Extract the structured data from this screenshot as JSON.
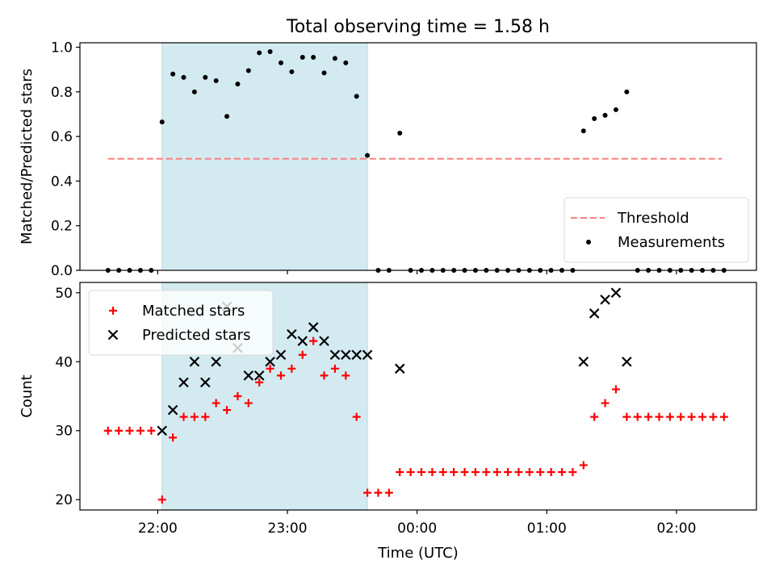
{
  "chart_data": {
    "title": "Total observing time = 1.58 h",
    "x_axis": {
      "label": "Time (UTC)",
      "range": [
        "21:24",
        "02:37"
      ],
      "ticks": [
        "22:00",
        "23:00",
        "00:00",
        "01:00",
        "02:00"
      ]
    },
    "highlight_span": {
      "start": "22:02",
      "end": "23:37",
      "color": "#d3eaf1"
    },
    "panels": [
      {
        "type": "scatter",
        "ylabel": "Matched/Predicted stars",
        "ylim": [
          0,
          1.02
        ],
        "yticks": [
          "0.0",
          "0.2",
          "0.4",
          "0.6",
          "0.8",
          "1.0"
        ],
        "legend_position": "lower-right",
        "threshold": {
          "name": "Threshold",
          "value": 0.5,
          "x_start": "21:37",
          "x_end": "02:21",
          "color": "#ff7f7f",
          "style": "dashed"
        },
        "series": [
          {
            "name": "Measurements",
            "marker": "dot",
            "color": "#000000",
            "points": [
              [
                "21:37",
                0
              ],
              [
                "21:42",
                0
              ],
              [
                "21:47",
                0
              ],
              [
                "21:52",
                0
              ],
              [
                "21:57",
                0
              ],
              [
                "22:02",
                0.665
              ],
              [
                "22:07",
                0.88
              ],
              [
                "22:12",
                0.865
              ],
              [
                "22:17",
                0.8
              ],
              [
                "22:22",
                0.865
              ],
              [
                "22:27",
                0.85
              ],
              [
                "22:32",
                0.69
              ],
              [
                "22:37",
                0.835
              ],
              [
                "22:42",
                0.895
              ],
              [
                "22:47",
                0.975
              ],
              [
                "22:52",
                0.98
              ],
              [
                "22:57",
                0.93
              ],
              [
                "23:02",
                0.89
              ],
              [
                "23:07",
                0.955
              ],
              [
                "23:12",
                0.955
              ],
              [
                "23:17",
                0.885
              ],
              [
                "23:22",
                0.95
              ],
              [
                "23:27",
                0.93
              ],
              [
                "23:32",
                0.78
              ],
              [
                "23:37",
                0.515
              ],
              [
                "23:42",
                0
              ],
              [
                "23:47",
                0
              ],
              [
                "23:52",
                0.615
              ],
              [
                "23:57",
                0
              ],
              [
                "00:02",
                0
              ],
              [
                "00:07",
                0
              ],
              [
                "00:12",
                0
              ],
              [
                "00:17",
                0
              ],
              [
                "00:22",
                0
              ],
              [
                "00:27",
                0
              ],
              [
                "00:32",
                0
              ],
              [
                "00:37",
                0
              ],
              [
                "00:42",
                0
              ],
              [
                "00:47",
                0
              ],
              [
                "00:52",
                0
              ],
              [
                "00:57",
                0
              ],
              [
                "01:02",
                0
              ],
              [
                "01:07",
                0
              ],
              [
                "01:12",
                0
              ],
              [
                "01:17",
                0.625
              ],
              [
                "01:22",
                0.68
              ],
              [
                "01:27",
                0.695
              ],
              [
                "01:32",
                0.72
              ],
              [
                "01:37",
                0.8
              ],
              [
                "01:42",
                0
              ],
              [
                "01:47",
                0
              ],
              [
                "01:52",
                0
              ],
              [
                "01:57",
                0
              ],
              [
                "02:02",
                0
              ],
              [
                "02:07",
                0
              ],
              [
                "02:12",
                0
              ],
              [
                "02:17",
                0
              ],
              [
                "02:22",
                0
              ]
            ]
          }
        ]
      },
      {
        "type": "scatter",
        "ylabel": "Count",
        "ylim": [
          18.5,
          51.5
        ],
        "yticks": [
          "20",
          "30",
          "40",
          "50"
        ],
        "legend_position": "upper-left",
        "series": [
          {
            "name": "Matched stars",
            "marker": "plus",
            "color": "#ff0000",
            "points": [
              [
                "21:37",
                30
              ],
              [
                "21:42",
                30
              ],
              [
                "21:47",
                30
              ],
              [
                "21:52",
                30
              ],
              [
                "21:57",
                30
              ],
              [
                "22:02",
                20
              ],
              [
                "22:07",
                29
              ],
              [
                "22:12",
                32
              ],
              [
                "22:17",
                32
              ],
              [
                "22:22",
                32
              ],
              [
                "22:27",
                34
              ],
              [
                "22:32",
                33
              ],
              [
                "22:37",
                35
              ],
              [
                "22:42",
                34
              ],
              [
                "22:47",
                37
              ],
              [
                "22:52",
                39
              ],
              [
                "22:57",
                38
              ],
              [
                "23:02",
                39
              ],
              [
                "23:07",
                41
              ],
              [
                "23:12",
                43
              ],
              [
                "23:17",
                38
              ],
              [
                "23:22",
                39
              ],
              [
                "23:27",
                38
              ],
              [
                "23:32",
                32
              ],
              [
                "23:37",
                21
              ],
              [
                "23:42",
                21
              ],
              [
                "23:47",
                21
              ],
              [
                "23:52",
                24
              ],
              [
                "23:57",
                24
              ],
              [
                "00:02",
                24
              ],
              [
                "00:07",
                24
              ],
              [
                "00:12",
                24
              ],
              [
                "00:17",
                24
              ],
              [
                "00:22",
                24
              ],
              [
                "00:27",
                24
              ],
              [
                "00:32",
                24
              ],
              [
                "00:37",
                24
              ],
              [
                "00:42",
                24
              ],
              [
                "00:47",
                24
              ],
              [
                "00:52",
                24
              ],
              [
                "00:57",
                24
              ],
              [
                "01:02",
                24
              ],
              [
                "01:07",
                24
              ],
              [
                "01:12",
                24
              ],
              [
                "01:17",
                25
              ],
              [
                "01:22",
                32
              ],
              [
                "01:27",
                34
              ],
              [
                "01:32",
                36
              ],
              [
                "01:37",
                32
              ],
              [
                "01:42",
                32
              ],
              [
                "01:47",
                32
              ],
              [
                "01:52",
                32
              ],
              [
                "01:57",
                32
              ],
              [
                "02:02",
                32
              ],
              [
                "02:07",
                32
              ],
              [
                "02:12",
                32
              ],
              [
                "02:17",
                32
              ],
              [
                "02:22",
                32
              ]
            ]
          },
          {
            "name": "Predicted stars",
            "marker": "x",
            "color": "#000000",
            "points": [
              [
                "22:02",
                30
              ],
              [
                "22:07",
                33
              ],
              [
                "22:12",
                37
              ],
              [
                "22:17",
                40
              ],
              [
                "22:22",
                37
              ],
              [
                "22:27",
                40
              ],
              [
                "22:32",
                48
              ],
              [
                "22:37",
                42
              ],
              [
                "22:42",
                38
              ],
              [
                "22:47",
                38
              ],
              [
                "22:52",
                40
              ],
              [
                "22:57",
                41
              ],
              [
                "23:02",
                44
              ],
              [
                "23:07",
                43
              ],
              [
                "23:12",
                45
              ],
              [
                "23:17",
                43
              ],
              [
                "23:22",
                41
              ],
              [
                "23:27",
                41
              ],
              [
                "23:32",
                41
              ],
              [
                "23:37",
                41
              ],
              [
                "23:52",
                39
              ],
              [
                "01:17",
                40
              ],
              [
                "01:22",
                47
              ],
              [
                "01:27",
                49
              ],
              [
                "01:32",
                50
              ],
              [
                "01:37",
                40
              ]
            ]
          }
        ]
      }
    ]
  }
}
